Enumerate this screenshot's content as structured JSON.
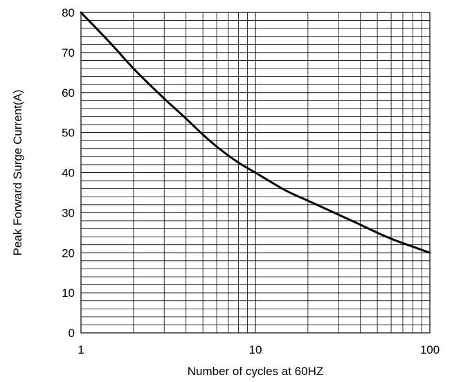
{
  "chart_data": {
    "type": "line",
    "title": "",
    "xlabel": "Number of cycles at 60HZ",
    "ylabel": "Peak Forward Surge Current(A)",
    "x_scale": "log",
    "xlim": [
      1,
      100
    ],
    "ylim": [
      0,
      80
    ],
    "x_ticks": [
      1,
      10,
      100
    ],
    "x_tick_labels": [
      "1",
      "10",
      "100"
    ],
    "y_ticks": [
      0,
      10,
      20,
      30,
      40,
      50,
      60,
      70,
      80
    ],
    "y_tick_labels": [
      "0",
      "10",
      "20",
      "30",
      "40",
      "50",
      "60",
      "70",
      "80"
    ],
    "grid": true,
    "legend": "none",
    "series": [
      {
        "x": [
          1,
          1.5,
          2,
          3,
          4,
          5,
          6,
          8,
          10,
          15,
          20,
          30,
          40,
          50,
          60,
          80,
          100
        ],
        "y": [
          80,
          72,
          66,
          58.5,
          53.5,
          49.5,
          46.5,
          42.5,
          40,
          35.5,
          33,
          29.5,
          27,
          25,
          23.5,
          21.5,
          20
        ]
      }
    ],
    "colors": {
      "line": "#000000",
      "grid": "#000000",
      "axis": "#000000"
    }
  }
}
